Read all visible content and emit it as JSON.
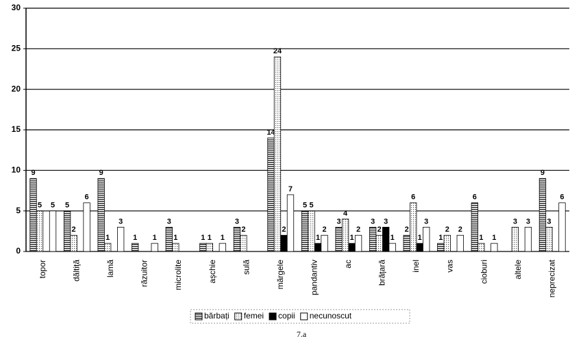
{
  "chart_data": {
    "type": "bar",
    "categories": [
      "topor",
      "dăltiță",
      "lamă",
      "răzuitor",
      "microlite",
      "așchie",
      "sulă",
      "mărgele",
      "pandantiv",
      "ac",
      "brățară",
      "inel",
      "vas",
      "cioburi",
      "altele",
      "neprecizat"
    ],
    "series": [
      {
        "name": "bărbați",
        "color": "#555555",
        "pattern": "hlines",
        "values": [
          9,
          5,
          9,
          1,
          3,
          1,
          3,
          14,
          5,
          3,
          3,
          2,
          1,
          6,
          0,
          9
        ]
      },
      {
        "name": "femei",
        "color": "#bbbbbb",
        "pattern": "dots",
        "values": [
          5,
          2,
          1,
          0,
          1,
          1,
          2,
          24,
          5,
          4,
          2,
          6,
          2,
          1,
          3,
          3
        ]
      },
      {
        "name": "copii",
        "color": "#000000",
        "values": [
          0,
          0,
          0,
          0,
          0,
          0,
          0,
          2,
          1,
          1,
          3,
          1,
          0,
          0,
          0,
          0
        ]
      },
      {
        "name": "necunoscut",
        "color": "#ffffff",
        "values": [
          5,
          6,
          3,
          1,
          0,
          1,
          0,
          7,
          2,
          2,
          1,
          3,
          2,
          1,
          3,
          6
        ]
      }
    ],
    "ylim": [
      0,
      30
    ],
    "yticks": [
      0,
      5,
      10,
      15,
      20,
      25,
      30
    ],
    "grid": true,
    "legend": "bottom",
    "caption": "7.a"
  }
}
